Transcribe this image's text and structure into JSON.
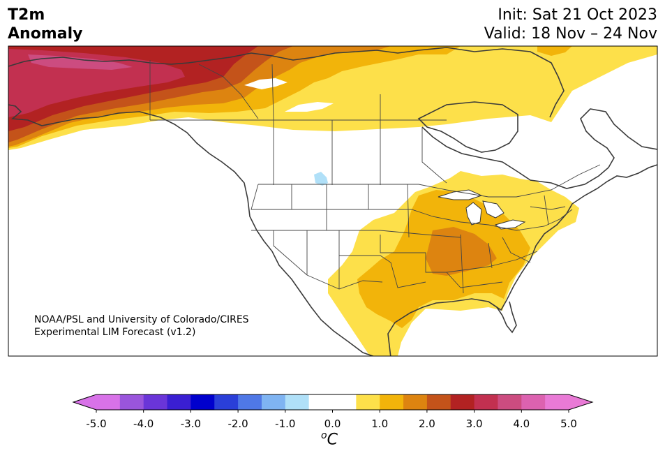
{
  "title": {
    "left_line1": "T2m",
    "left_line2": "Anomaly",
    "init": "Init: Sat 21 Oct 2023",
    "valid": "Valid: 18 Nov – 24 Nov"
  },
  "credit": {
    "line1": "NOAA/PSL and University of Colorado/CIRES",
    "line2": "Experimental LIM Forecast (v1.2)"
  },
  "colorbar": {
    "unit_base": "C",
    "unit_sup": "o",
    "ticks": [
      "-5.0",
      "-4.0",
      "-3.0",
      "-2.0",
      "-1.0",
      "0.0",
      "1.0",
      "2.0",
      "3.0",
      "4.0",
      "5.0"
    ],
    "colors": [
      "#d872e8",
      "#9a55dc",
      "#6a35d8",
      "#3a1fd2",
      "#0000cd",
      "#2a3fd8",
      "#4f78e6",
      "#7fb4f2",
      "#b0e0f8",
      "#ffffff",
      "#ffffff",
      "#fde04a",
      "#f2b40a",
      "#dd8410",
      "#c4531a",
      "#b22222",
      "#c23050",
      "#cc4c80",
      "#dc62b0",
      "#e97ad6"
    ],
    "under_color": "#d872e8",
    "over_color": "#e97ad6"
  },
  "legend_colors": {
    "warm_05_1": "#fde04a",
    "warm_1_15": "#f2b40a",
    "warm_15_2": "#dd8410",
    "warm_2_25": "#c4531a",
    "warm_25_3": "#b22222",
    "warm_3_35": "#c23050",
    "warm_35_4": "#cc4c80",
    "cool_05_1": "#b0e0f8"
  }
}
